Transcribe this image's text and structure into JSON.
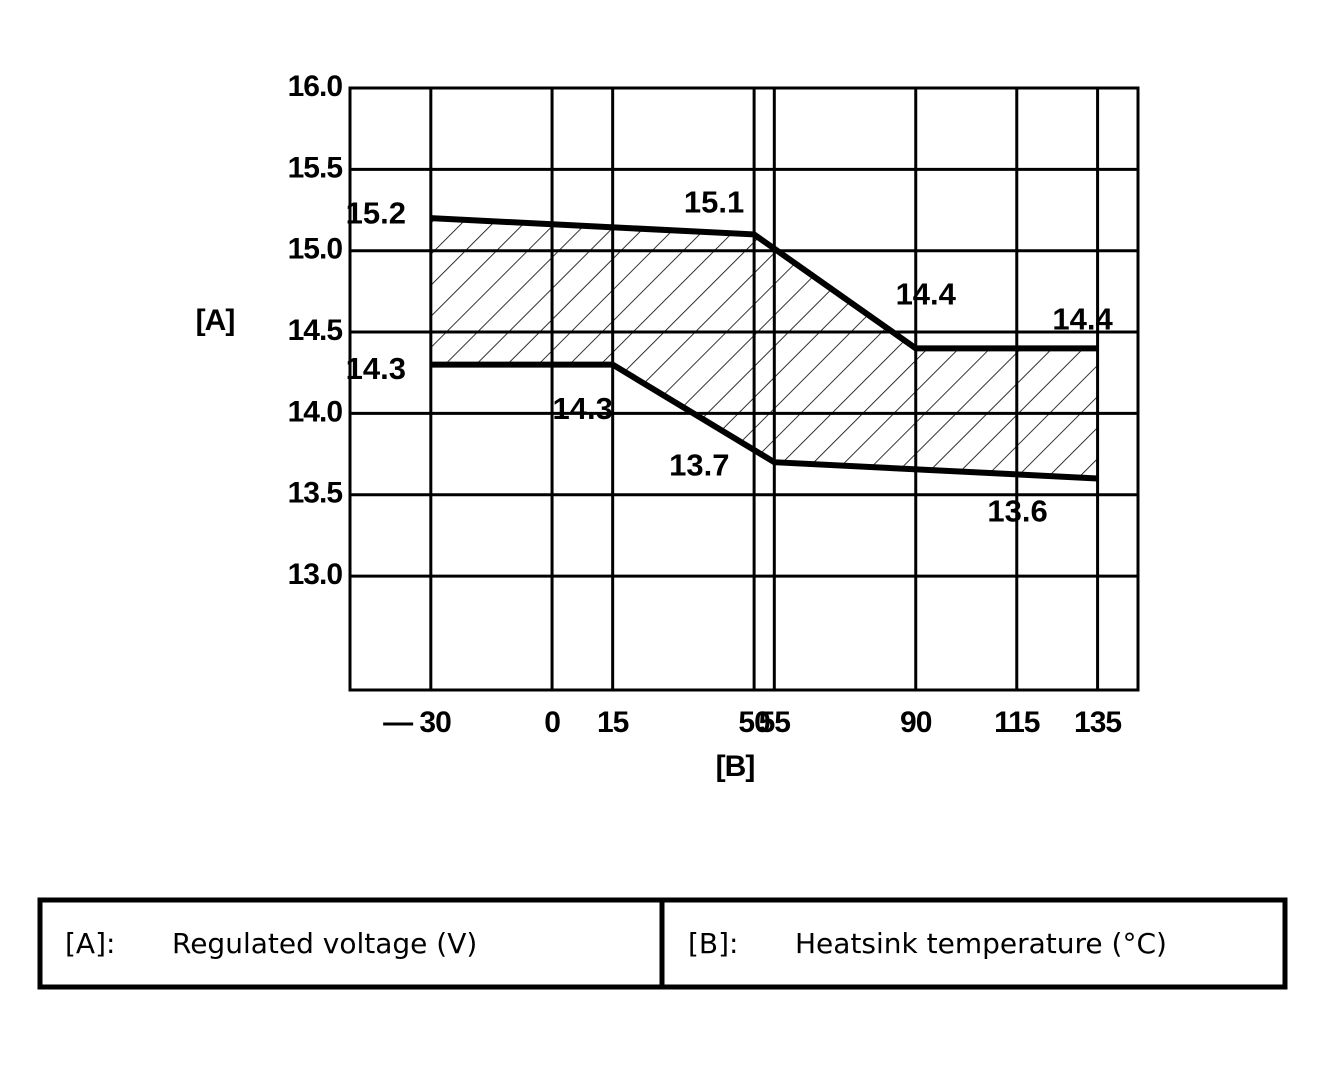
{
  "chart_data": {
    "type": "line",
    "x_label": "[B]",
    "y_label": "[A]",
    "xlim": [
      -50,
      145
    ],
    "xticks": [
      {
        "value": -30,
        "label": "— 30"
      },
      0,
      15,
      50,
      55,
      90,
      115,
      135
    ],
    "ylim": [
      12.3,
      16.0
    ],
    "yticks": [
      {
        "value": 16.0,
        "label": "16.0"
      },
      15.5,
      {
        "value": 15.0,
        "label": "15.0"
      },
      14.5,
      {
        "value": 14.0,
        "label": "14.0"
      },
      13.5,
      {
        "value": 13.0,
        "label": "13.0"
      }
    ],
    "grid": true,
    "hatch_between_series": true,
    "series": [
      {
        "color": "#000000",
        "x": [
          -30,
          50,
          90,
          135
        ],
        "values": [
          15.2,
          15.1,
          14.4,
          14.4
        ]
      },
      {
        "color": "#000000",
        "x": [
          -30,
          15,
          55,
          135
        ],
        "values": [
          14.3,
          14.3,
          13.7,
          13.6
        ]
      }
    ]
  },
  "key_table": [
    {
      "key": "[A]:",
      "text": "Regulated voltage (V)"
    },
    {
      "key": "[B]:",
      "text": "Heatsink temperature (°C)"
    }
  ]
}
